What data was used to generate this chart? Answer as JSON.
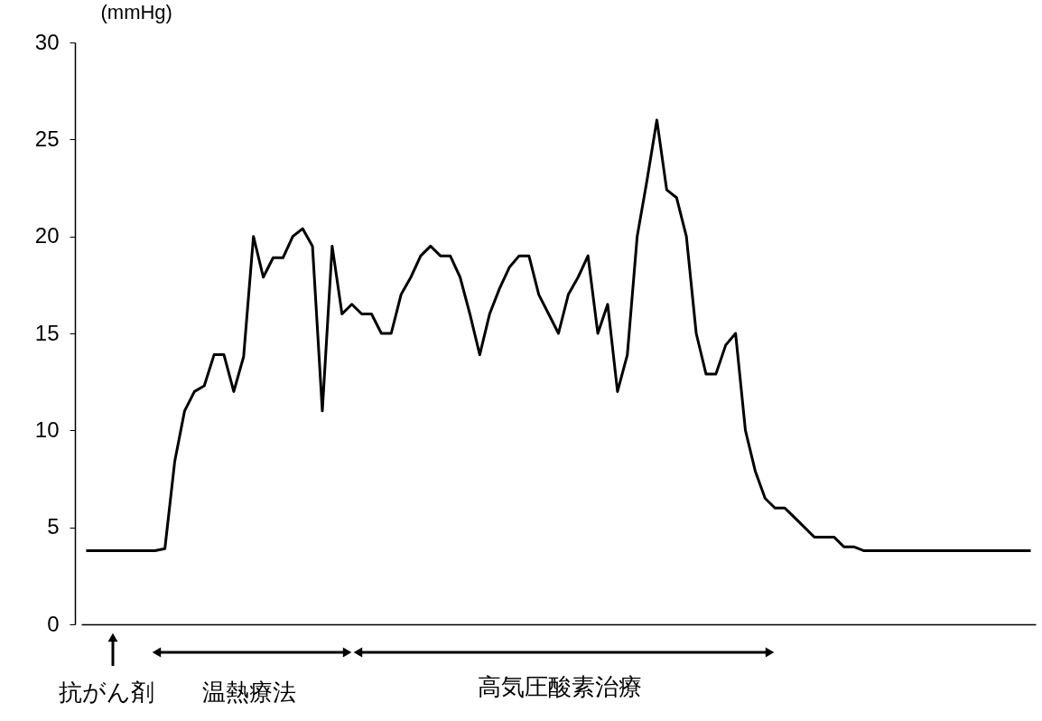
{
  "chart_data": {
    "type": "line",
    "ylabel": "(mmHg)",
    "categories": [
      null,
      null,
      null,
      null,
      null,
      null,
      null,
      null,
      null,
      null,
      null,
      null,
      null,
      null,
      null,
      null,
      null,
      null,
      null,
      null,
      null,
      null,
      null,
      null,
      null,
      null,
      null,
      null,
      null,
      null,
      null,
      null,
      null,
      null,
      null,
      null,
      null,
      null,
      null,
      null,
      null,
      null,
      null,
      null,
      null,
      null,
      null,
      null,
      null,
      null,
      null,
      null,
      null,
      null,
      null,
      null,
      null,
      null,
      null,
      null,
      null,
      null,
      null,
      null,
      null,
      null,
      null,
      null,
      null,
      null,
      null,
      null,
      null,
      null,
      null,
      null,
      null,
      null,
      null,
      null,
      null,
      null,
      null,
      null,
      null,
      null,
      null,
      null,
      null,
      null,
      null,
      null,
      null,
      null,
      null,
      null,
      null
    ],
    "series": [
      {
        "color": "#000000",
        "values": [
          3.8,
          3.8,
          3.8,
          3.8,
          3.8,
          3.8,
          3.8,
          3.8,
          3.9,
          8.4,
          11,
          12,
          12.3,
          13.9,
          13.9,
          12,
          13.8,
          20,
          17.9,
          18.9,
          18.9,
          20,
          20.4,
          19.5,
          11,
          19.5,
          16,
          16.5,
          16,
          16,
          15,
          15,
          17,
          17.9,
          19,
          19.5,
          19,
          19,
          17.9,
          16,
          13.9,
          16,
          17.3,
          18.4,
          19,
          19,
          17,
          16,
          15,
          17,
          17.9,
          19,
          15,
          16.5,
          12,
          13.9,
          20,
          22.9,
          26,
          22.4,
          22,
          20,
          15,
          12.9,
          12.9,
          14.4,
          15,
          10,
          7.9,
          6.5,
          6,
          6,
          5.5,
          5,
          4.5,
          4.5,
          4.5,
          4,
          4,
          3.8,
          3.8,
          3.8,
          3.8,
          3.8,
          3.8,
          3.8,
          3.8,
          3.8,
          3.8,
          3.8,
          3.8,
          3.8,
          3.8,
          3.8,
          3.8,
          3.8,
          3.8
        ]
      }
    ],
    "ylim": [
      0,
      30
    ],
    "yticks": [
      0,
      5,
      10,
      15,
      20,
      25,
      30
    ],
    "grid": false,
    "marker": "none",
    "line_style": "solid",
    "tick_labels": "y",
    "annotations": [
      "抗がん剤",
      "温熱療法",
      "高気圧酸素治療"
    ]
  }
}
